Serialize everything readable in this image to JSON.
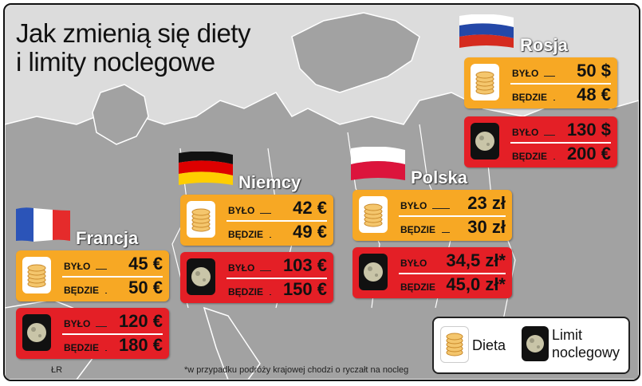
{
  "title": {
    "line1": "Jak zmienią się diety",
    "line2": "i limity noclegowe"
  },
  "countries": {
    "rosja": {
      "name": "Rosja",
      "dieta": {
        "bylo": "50 $",
        "bedzie": "48 €"
      },
      "limit": {
        "bylo": "130 $",
        "bedzie": "200 €"
      }
    },
    "niemcy": {
      "name": "Niemcy",
      "dieta": {
        "bylo": "42 €",
        "bedzie": "49 €"
      },
      "limit": {
        "bylo": "103 €",
        "bedzie": "150 €"
      }
    },
    "polska": {
      "name": "Polska",
      "dieta": {
        "bylo": "23 zł",
        "bedzie": "30 zł"
      },
      "limit": {
        "bylo": "34,5 zł*",
        "bedzie": "45,0 zł*"
      }
    },
    "francja": {
      "name": "Francja",
      "dieta": {
        "bylo": "45 €",
        "bedzie": "50 €"
      },
      "limit": {
        "bylo": "120 €",
        "bedzie": "180 €"
      }
    }
  },
  "labels": {
    "bylo": "BYŁO",
    "bedzie": "BĘDZIE"
  },
  "legend": {
    "dieta": "Dieta",
    "limit_line1": "Limit",
    "limit_line2": "noclegowy"
  },
  "footnote": "*w przypadku podróży krajowej chodzi o ryczałt na nocleg",
  "credit": "ŁR",
  "colors": {
    "dieta_box": "#f7a824",
    "limit_box": "#e41f26",
    "map_land": "#9a9a9a",
    "map_sea": "#e4e4e4"
  },
  "icons": {
    "dieta": "coin-stack-icon",
    "limit": "moon-icon"
  }
}
